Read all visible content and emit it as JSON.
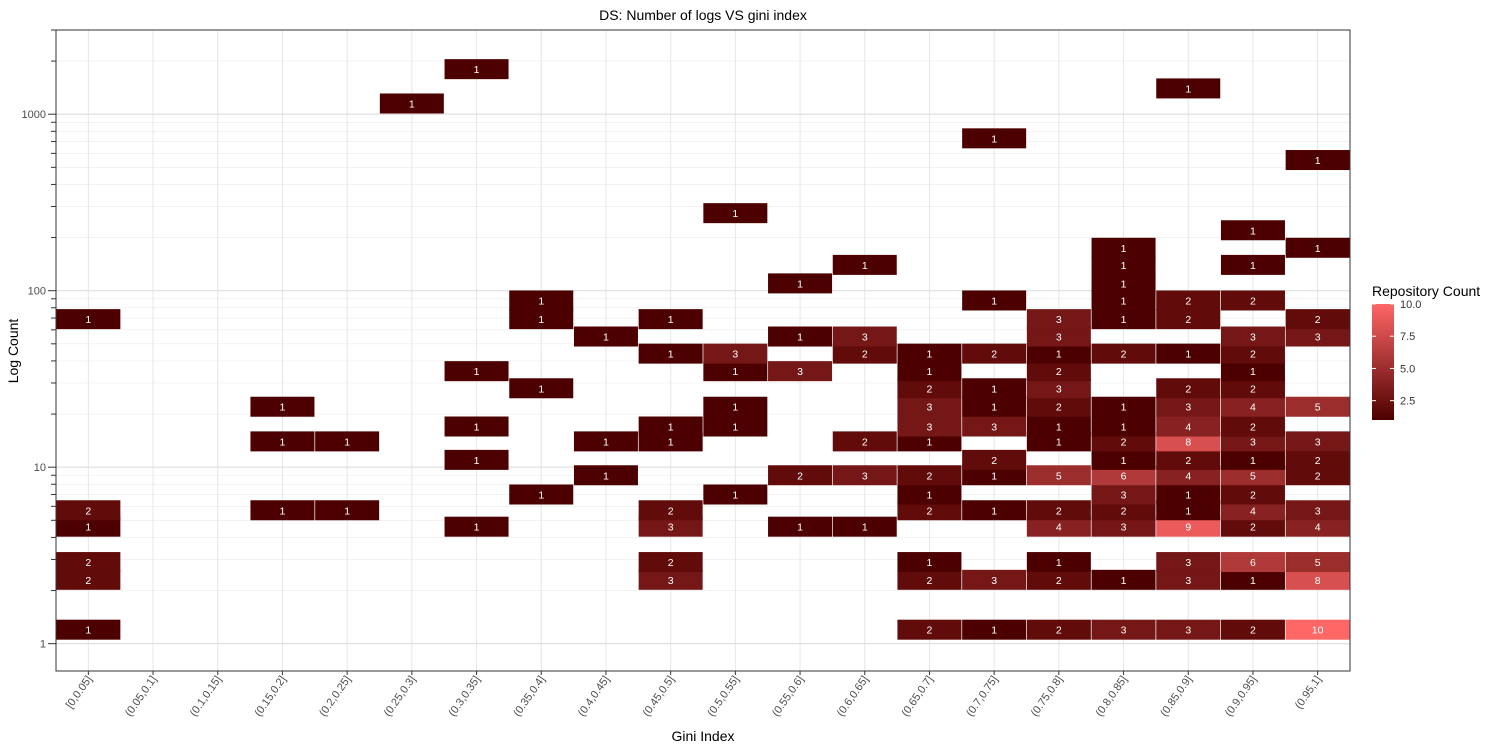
{
  "chart_data": {
    "type": "heatmap",
    "title": "DS: Number of logs VS gini index",
    "xlabel": "Gini Index",
    "ylabel": "Log Count",
    "y_scale": "log10",
    "ylim": [
      0.7,
      3000
    ],
    "y_ticks": [
      1,
      10,
      100,
      1000
    ],
    "categories": [
      "[0,0.05]",
      "(0.05,0.1]",
      "(0.1,0.15]",
      "(0.15,0.2]",
      "(0.2,0.25]",
      "(0.25,0.3]",
      "(0.3,0.35]",
      "(0.35,0.4]",
      "(0.4,0.45]",
      "(0.45,0.5]",
      "(0.5,0.55]",
      "(0.55,0.6]",
      "(0.6,0.65]",
      "(0.65,0.7]",
      "(0.7,0.75]",
      "(0.75,0.8]",
      "(0.8,0.85]",
      "(0.85,0.9]",
      "(0.9,0.95]",
      "(0.95,1]"
    ],
    "legend": {
      "title": "Repository Count",
      "min": 1,
      "max": 10,
      "ticks": [
        "2.5",
        "5.0",
        "7.5",
        "10.0"
      ],
      "low_color": "#4d0000",
      "high_color": "#ff6666",
      "position": "right"
    },
    "grid": true,
    "cells": [
      {
        "x": "[0,0.05]",
        "y": 1.2,
        "count": 1
      },
      {
        "x": "[0,0.05]",
        "y": 2.3,
        "count": 2
      },
      {
        "x": "[0,0.05]",
        "y": 2.9,
        "count": 2
      },
      {
        "x": "[0,0.05]",
        "y": 4.6,
        "count": 1
      },
      {
        "x": "[0,0.05]",
        "y": 5.7,
        "count": 2
      },
      {
        "x": "[0,0.05]",
        "y": 69,
        "count": 1
      },
      {
        "x": "(0.15,0.2]",
        "y": 5.7,
        "count": 1
      },
      {
        "x": "(0.15,0.2]",
        "y": 14,
        "count": 1
      },
      {
        "x": "(0.15,0.2]",
        "y": 22,
        "count": 1
      },
      {
        "x": "(0.2,0.25]",
        "y": 5.7,
        "count": 1
      },
      {
        "x": "(0.2,0.25]",
        "y": 14,
        "count": 1
      },
      {
        "x": "(0.25,0.3]",
        "y": 1150,
        "count": 1
      },
      {
        "x": "(0.3,0.35]",
        "y": 4.6,
        "count": 1
      },
      {
        "x": "(0.3,0.35]",
        "y": 11,
        "count": 1
      },
      {
        "x": "(0.3,0.35]",
        "y": 17,
        "count": 1
      },
      {
        "x": "(0.3,0.35]",
        "y": 35,
        "count": 1
      },
      {
        "x": "(0.3,0.35]",
        "y": 1800,
        "count": 1
      },
      {
        "x": "(0.35,0.4]",
        "y": 7,
        "count": 1
      },
      {
        "x": "(0.35,0.4]",
        "y": 28,
        "count": 1
      },
      {
        "x": "(0.35,0.4]",
        "y": 69,
        "count": 1
      },
      {
        "x": "(0.35,0.4]",
        "y": 88,
        "count": 1
      },
      {
        "x": "(0.4,0.45]",
        "y": 9,
        "count": 1
      },
      {
        "x": "(0.4,0.45]",
        "y": 14,
        "count": 1
      },
      {
        "x": "(0.4,0.45]",
        "y": 55,
        "count": 1
      },
      {
        "x": "(0.45,0.5]",
        "y": 2.3,
        "count": 3
      },
      {
        "x": "(0.45,0.5]",
        "y": 2.9,
        "count": 2
      },
      {
        "x": "(0.45,0.5]",
        "y": 4.6,
        "count": 3
      },
      {
        "x": "(0.45,0.5]",
        "y": 5.7,
        "count": 2
      },
      {
        "x": "(0.45,0.5]",
        "y": 14,
        "count": 1
      },
      {
        "x": "(0.45,0.5]",
        "y": 17,
        "count": 1
      },
      {
        "x": "(0.45,0.5]",
        "y": 44,
        "count": 1
      },
      {
        "x": "(0.45,0.5]",
        "y": 69,
        "count": 1
      },
      {
        "x": "(0.5,0.55]",
        "y": 7,
        "count": 1
      },
      {
        "x": "(0.5,0.55]",
        "y": 17,
        "count": 1
      },
      {
        "x": "(0.5,0.55]",
        "y": 22,
        "count": 1
      },
      {
        "x": "(0.5,0.55]",
        "y": 35,
        "count": 1
      },
      {
        "x": "(0.5,0.55]",
        "y": 44,
        "count": 3
      },
      {
        "x": "(0.5,0.55]",
        "y": 275,
        "count": 1
      },
      {
        "x": "(0.55,0.6]",
        "y": 4.6,
        "count": 1
      },
      {
        "x": "(0.55,0.6]",
        "y": 9,
        "count": 2
      },
      {
        "x": "(0.55,0.6]",
        "y": 35,
        "count": 3
      },
      {
        "x": "(0.55,0.6]",
        "y": 55,
        "count": 1
      },
      {
        "x": "(0.55,0.6]",
        "y": 110,
        "count": 1
      },
      {
        "x": "(0.6,0.65]",
        "y": 4.6,
        "count": 1
      },
      {
        "x": "(0.6,0.65]",
        "y": 9,
        "count": 3
      },
      {
        "x": "(0.6,0.65]",
        "y": 14,
        "count": 2
      },
      {
        "x": "(0.6,0.65]",
        "y": 44,
        "count": 2
      },
      {
        "x": "(0.6,0.65]",
        "y": 55,
        "count": 3
      },
      {
        "x": "(0.6,0.65]",
        "y": 140,
        "count": 1
      },
      {
        "x": "(0.65,0.7]",
        "y": 1.2,
        "count": 2
      },
      {
        "x": "(0.65,0.7]",
        "y": 2.3,
        "count": 2
      },
      {
        "x": "(0.65,0.7]",
        "y": 2.9,
        "count": 1
      },
      {
        "x": "(0.65,0.7]",
        "y": 5.7,
        "count": 2
      },
      {
        "x": "(0.65,0.7]",
        "y": 7,
        "count": 1
      },
      {
        "x": "(0.65,0.7]",
        "y": 9,
        "count": 2
      },
      {
        "x": "(0.65,0.7]",
        "y": 14,
        "count": 1
      },
      {
        "x": "(0.65,0.7]",
        "y": 17,
        "count": 3
      },
      {
        "x": "(0.65,0.7]",
        "y": 22,
        "count": 3
      },
      {
        "x": "(0.65,0.7]",
        "y": 28,
        "count": 2
      },
      {
        "x": "(0.65,0.7]",
        "y": 35,
        "count": 1
      },
      {
        "x": "(0.65,0.7]",
        "y": 44,
        "count": 1
      },
      {
        "x": "(0.7,0.75]",
        "y": 1.2,
        "count": 1
      },
      {
        "x": "(0.7,0.75]",
        "y": 2.3,
        "count": 3
      },
      {
        "x": "(0.7,0.75]",
        "y": 5.7,
        "count": 1
      },
      {
        "x": "(0.7,0.75]",
        "y": 9,
        "count": 1
      },
      {
        "x": "(0.7,0.75]",
        "y": 11,
        "count": 2
      },
      {
        "x": "(0.7,0.75]",
        "y": 17,
        "count": 3
      },
      {
        "x": "(0.7,0.75]",
        "y": 22,
        "count": 1
      },
      {
        "x": "(0.7,0.75]",
        "y": 28,
        "count": 1
      },
      {
        "x": "(0.7,0.75]",
        "y": 44,
        "count": 2
      },
      {
        "x": "(0.7,0.75]",
        "y": 88,
        "count": 1
      },
      {
        "x": "(0.7,0.75]",
        "y": 730,
        "count": 1
      },
      {
        "x": "(0.75,0.8]",
        "y": 1.2,
        "count": 2
      },
      {
        "x": "(0.75,0.8]",
        "y": 2.3,
        "count": 2
      },
      {
        "x": "(0.75,0.8]",
        "y": 2.9,
        "count": 1
      },
      {
        "x": "(0.75,0.8]",
        "y": 4.6,
        "count": 4
      },
      {
        "x": "(0.75,0.8]",
        "y": 5.7,
        "count": 2
      },
      {
        "x": "(0.75,0.8]",
        "y": 9,
        "count": 5
      },
      {
        "x": "(0.75,0.8]",
        "y": 14,
        "count": 1
      },
      {
        "x": "(0.75,0.8]",
        "y": 17,
        "count": 1
      },
      {
        "x": "(0.75,0.8]",
        "y": 22,
        "count": 2
      },
      {
        "x": "(0.75,0.8]",
        "y": 28,
        "count": 3
      },
      {
        "x": "(0.75,0.8]",
        "y": 35,
        "count": 2
      },
      {
        "x": "(0.75,0.8]",
        "y": 44,
        "count": 1
      },
      {
        "x": "(0.75,0.8]",
        "y": 55,
        "count": 3
      },
      {
        "x": "(0.75,0.8]",
        "y": 69,
        "count": 3
      },
      {
        "x": "(0.8,0.85]",
        "y": 1.2,
        "count": 3
      },
      {
        "x": "(0.8,0.85]",
        "y": 2.3,
        "count": 1
      },
      {
        "x": "(0.8,0.85]",
        "y": 4.6,
        "count": 3
      },
      {
        "x": "(0.8,0.85]",
        "y": 5.7,
        "count": 2
      },
      {
        "x": "(0.8,0.85]",
        "y": 7,
        "count": 3
      },
      {
        "x": "(0.8,0.85]",
        "y": 9,
        "count": 6
      },
      {
        "x": "(0.8,0.85]",
        "y": 11,
        "count": 1
      },
      {
        "x": "(0.8,0.85]",
        "y": 14,
        "count": 2
      },
      {
        "x": "(0.8,0.85]",
        "y": 17,
        "count": 1
      },
      {
        "x": "(0.8,0.85]",
        "y": 22,
        "count": 1
      },
      {
        "x": "(0.8,0.85]",
        "y": 44,
        "count": 2
      },
      {
        "x": "(0.8,0.85]",
        "y": 69,
        "count": 1
      },
      {
        "x": "(0.8,0.85]",
        "y": 88,
        "count": 1
      },
      {
        "x": "(0.8,0.85]",
        "y": 110,
        "count": 1
      },
      {
        "x": "(0.8,0.85]",
        "y": 140,
        "count": 1
      },
      {
        "x": "(0.8,0.85]",
        "y": 175,
        "count": 1
      },
      {
        "x": "(0.85,0.9]",
        "y": 1.2,
        "count": 3
      },
      {
        "x": "(0.85,0.9]",
        "y": 2.3,
        "count": 3
      },
      {
        "x": "(0.85,0.9]",
        "y": 2.9,
        "count": 3
      },
      {
        "x": "(0.85,0.9]",
        "y": 4.6,
        "count": 9
      },
      {
        "x": "(0.85,0.9]",
        "y": 5.7,
        "count": 1
      },
      {
        "x": "(0.85,0.9]",
        "y": 7,
        "count": 1
      },
      {
        "x": "(0.85,0.9]",
        "y": 9,
        "count": 4
      },
      {
        "x": "(0.85,0.9]",
        "y": 11,
        "count": 2
      },
      {
        "x": "(0.85,0.9]",
        "y": 14,
        "count": 8
      },
      {
        "x": "(0.85,0.9]",
        "y": 17,
        "count": 4
      },
      {
        "x": "(0.85,0.9]",
        "y": 22,
        "count": 3
      },
      {
        "x": "(0.85,0.9]",
        "y": 28,
        "count": 2
      },
      {
        "x": "(0.85,0.9]",
        "y": 44,
        "count": 1
      },
      {
        "x": "(0.85,0.9]",
        "y": 69,
        "count": 2
      },
      {
        "x": "(0.85,0.9]",
        "y": 88,
        "count": 2
      },
      {
        "x": "(0.85,0.9]",
        "y": 1400,
        "count": 1
      },
      {
        "x": "(0.9,0.95]",
        "y": 1.2,
        "count": 2
      },
      {
        "x": "(0.9,0.95]",
        "y": 2.3,
        "count": 1
      },
      {
        "x": "(0.9,0.95]",
        "y": 2.9,
        "count": 6
      },
      {
        "x": "(0.9,0.95]",
        "y": 4.6,
        "count": 2
      },
      {
        "x": "(0.9,0.95]",
        "y": 5.7,
        "count": 4
      },
      {
        "x": "(0.9,0.95]",
        "y": 7,
        "count": 2
      },
      {
        "x": "(0.9,0.95]",
        "y": 9,
        "count": 5
      },
      {
        "x": "(0.9,0.95]",
        "y": 11,
        "count": 1
      },
      {
        "x": "(0.9,0.95]",
        "y": 14,
        "count": 3
      },
      {
        "x": "(0.9,0.95]",
        "y": 17,
        "count": 2
      },
      {
        "x": "(0.9,0.95]",
        "y": 22,
        "count": 4
      },
      {
        "x": "(0.9,0.95]",
        "y": 28,
        "count": 2
      },
      {
        "x": "(0.9,0.95]",
        "y": 35,
        "count": 1
      },
      {
        "x": "(0.9,0.95]",
        "y": 44,
        "count": 2
      },
      {
        "x": "(0.9,0.95]",
        "y": 55,
        "count": 3
      },
      {
        "x": "(0.9,0.95]",
        "y": 88,
        "count": 2
      },
      {
        "x": "(0.9,0.95]",
        "y": 140,
        "count": 1
      },
      {
        "x": "(0.9,0.95]",
        "y": 220,
        "count": 1
      },
      {
        "x": "(0.95,1]",
        "y": 1.2,
        "count": 10
      },
      {
        "x": "(0.95,1]",
        "y": 2.3,
        "count": 8
      },
      {
        "x": "(0.95,1]",
        "y": 2.9,
        "count": 5
      },
      {
        "x": "(0.95,1]",
        "y": 4.6,
        "count": 4
      },
      {
        "x": "(0.95,1]",
        "y": 5.7,
        "count": 3
      },
      {
        "x": "(0.95,1]",
        "y": 9,
        "count": 2
      },
      {
        "x": "(0.95,1]",
        "y": 11,
        "count": 2
      },
      {
        "x": "(0.95,1]",
        "y": 14,
        "count": 3
      },
      {
        "x": "(0.95,1]",
        "y": 22,
        "count": 5
      },
      {
        "x": "(0.95,1]",
        "y": 55,
        "count": 3
      },
      {
        "x": "(0.95,1]",
        "y": 69,
        "count": 2
      },
      {
        "x": "(0.95,1]",
        "y": 175,
        "count": 1
      },
      {
        "x": "(0.95,1]",
        "y": 550,
        "count": 1
      }
    ]
  }
}
